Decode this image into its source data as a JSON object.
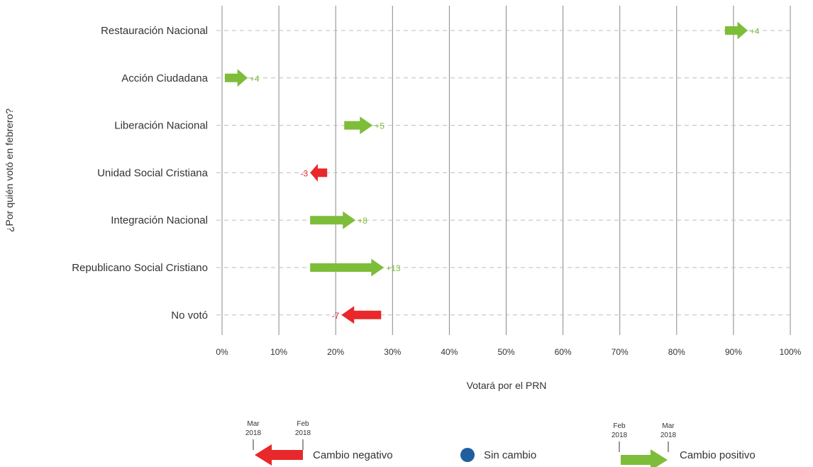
{
  "chart_data": {
    "type": "arrow",
    "title": "",
    "xlabel": "Votará por el PRN",
    "ylabel": "¿Por quién votó en febrero?",
    "xlim": [
      0,
      100
    ],
    "x_ticks": [
      0,
      10,
      20,
      30,
      40,
      50,
      60,
      70,
      80,
      90,
      100
    ],
    "x_tick_labels": [
      "0%",
      "10%",
      "20%",
      "30%",
      "40%",
      "50%",
      "60%",
      "70%",
      "80%",
      "90%",
      "100%"
    ],
    "grid": true,
    "series": [
      {
        "category": "Restauración Nacional",
        "feb": 88.5,
        "mar": 92.5,
        "change_label": "+4"
      },
      {
        "category": "Acción Ciudadana",
        "feb": 0.5,
        "mar": 4.5,
        "change_label": "+4"
      },
      {
        "category": "Liberación Nacional",
        "feb": 21.5,
        "mar": 26.5,
        "change_label": "+5"
      },
      {
        "category": "Unidad Social Cristiana",
        "feb": 18.5,
        "mar": 15.5,
        "change_label": "-3"
      },
      {
        "category": "Integración Nacional",
        "feb": 15.5,
        "mar": 23.5,
        "change_label": "+8"
      },
      {
        "category": "Republicano Social Cristiano",
        "feb": 15.5,
        "mar": 28.5,
        "change_label": "+13"
      },
      {
        "category": "No votó",
        "feb": 28,
        "mar": 21,
        "change_label": "-7"
      }
    ],
    "colors": {
      "positive": "#7dbd3a",
      "negative": "#e8282b",
      "no_change": "#1f5fa0",
      "grid": "#888888"
    },
    "legend": {
      "negative": {
        "left_top": "Mar",
        "left_bottom": "2018",
        "right_top": "Feb",
        "right_bottom": "2018",
        "label": "Cambio negativo"
      },
      "no_change": {
        "label": "Sin cambio"
      },
      "positive": {
        "left_top": "Feb",
        "left_bottom": "2018",
        "right_top": "Mar",
        "right_bottom": "2018",
        "label": "Cambio positivo"
      }
    }
  }
}
